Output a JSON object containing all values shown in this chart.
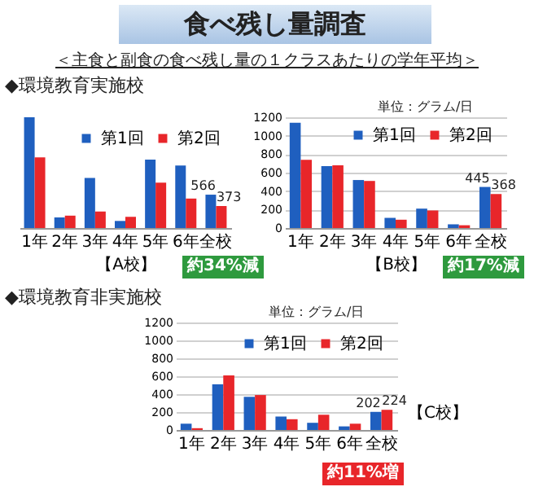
{
  "chart_data": [
    {
      "type": "bar",
      "title": "食べ残し量調査",
      "subtitle": "＜主食と副食の食べ残し量の１クラスあたりの学年平均＞",
      "xlabel": "【A校】",
      "annotations": [
        "◆環境教育実施校",
        "約34%減"
      ],
      "categories": [
        "1年",
        "2年",
        "3年",
        "4年",
        "5年",
        "6年",
        "全校"
      ],
      "series": [
        {
          "name": "第1回",
          "color": "#1f5fbf",
          "values": [
            1880,
            180,
            850,
            120,
            1160,
            1060,
            566
          ],
          "value_labels": [
            null,
            null,
            null,
            null,
            null,
            null,
            "566"
          ]
        },
        {
          "name": "第2回",
          "color": "#e8262a",
          "values": [
            1200,
            210,
            280,
            190,
            770,
            500,
            373
          ],
          "value_labels": [
            null,
            null,
            null,
            null,
            null,
            null,
            "373"
          ]
        }
      ],
      "tick_labels": "x",
      "legend": "top"
    },
    {
      "type": "bar",
      "xlabel": "【B校】",
      "annotations": [
        "単位：グラム/日",
        "約17%減"
      ],
      "categories": [
        "1年",
        "2年",
        "3年",
        "4年",
        "5年",
        "6年",
        "全校"
      ],
      "series": [
        {
          "name": "第1回",
          "color": "#1f5fbf",
          "values": [
            1140,
            670,
            520,
            110,
            210,
            40,
            445
          ],
          "value_labels": [
            null,
            null,
            null,
            null,
            null,
            null,
            "445"
          ]
        },
        {
          "name": "第2回",
          "color": "#e8262a",
          "values": [
            740,
            680,
            510,
            90,
            190,
            30,
            368
          ],
          "value_labels": [
            null,
            null,
            null,
            null,
            null,
            null,
            "368"
          ]
        }
      ],
      "ylim": [
        0,
        1200
      ],
      "yticks": [
        0,
        200,
        400,
        600,
        800,
        1000,
        1200
      ],
      "grid": "y",
      "legend": "top"
    },
    {
      "type": "bar",
      "xlabel": "【C校】",
      "annotations": [
        "◆環境教育非実施校",
        "単位：グラム/日",
        "約11%増"
      ],
      "categories": [
        "1年",
        "2年",
        "3年",
        "4年",
        "5年",
        "6年",
        "全校"
      ],
      "series": [
        {
          "name": "第1回",
          "color": "#1f5fbf",
          "values": [
            70,
            510,
            370,
            150,
            80,
            40,
            202
          ],
          "value_labels": [
            null,
            null,
            null,
            null,
            null,
            null,
            "202"
          ]
        },
        {
          "name": "第2回",
          "color": "#e8262a",
          "values": [
            20,
            610,
            390,
            120,
            170,
            70,
            224
          ],
          "value_labels": [
            null,
            null,
            null,
            null,
            null,
            null,
            "224"
          ]
        }
      ],
      "ylim": [
        0,
        1200
      ],
      "yticks": [
        0,
        200,
        400,
        600,
        800,
        1000,
        1200
      ],
      "grid": "y",
      "legend": "top"
    }
  ]
}
